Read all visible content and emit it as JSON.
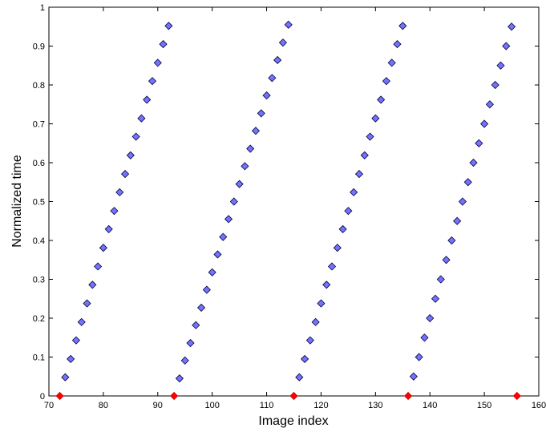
{
  "chart_data": {
    "type": "scatter",
    "title": "",
    "xlabel": "Image index",
    "ylabel": "Normalized time",
    "xlim": [
      70,
      160
    ],
    "ylim": [
      0,
      1
    ],
    "xticks": [
      70,
      80,
      90,
      100,
      110,
      120,
      130,
      140,
      150,
      160
    ],
    "yticks": [
      0,
      0.1,
      0.2,
      0.3,
      0.4,
      0.5,
      0.6,
      0.7,
      0.8,
      0.9,
      1
    ],
    "grid": false,
    "series": [
      {
        "marker": "diamond",
        "color": "#0000ff",
        "points": [
          [
            73,
            0.048
          ],
          [
            74,
            0.095
          ],
          [
            75,
            0.143
          ],
          [
            76,
            0.19
          ],
          [
            77,
            0.238
          ],
          [
            78,
            0.286
          ],
          [
            79,
            0.333
          ],
          [
            80,
            0.381
          ],
          [
            81,
            0.429
          ],
          [
            82,
            0.476
          ],
          [
            83,
            0.524
          ],
          [
            84,
            0.571
          ],
          [
            85,
            0.619
          ],
          [
            86,
            0.667
          ],
          [
            87,
            0.714
          ],
          [
            88,
            0.762
          ],
          [
            89,
            0.81
          ],
          [
            90,
            0.857
          ],
          [
            91,
            0.905
          ],
          [
            92,
            0.952
          ],
          [
            94,
            0.045
          ],
          [
            95,
            0.091
          ],
          [
            96,
            0.136
          ],
          [
            97,
            0.182
          ],
          [
            98,
            0.227
          ],
          [
            99,
            0.273
          ],
          [
            100,
            0.318
          ],
          [
            101,
            0.364
          ],
          [
            102,
            0.409
          ],
          [
            103,
            0.455
          ],
          [
            104,
            0.5
          ],
          [
            105,
            0.545
          ],
          [
            106,
            0.591
          ],
          [
            107,
            0.636
          ],
          [
            108,
            0.682
          ],
          [
            109,
            0.727
          ],
          [
            110,
            0.773
          ],
          [
            111,
            0.818
          ],
          [
            112,
            0.864
          ],
          [
            113,
            0.909
          ],
          [
            114,
            0.955
          ],
          [
            116,
            0.048
          ],
          [
            117,
            0.095
          ],
          [
            118,
            0.143
          ],
          [
            119,
            0.19
          ],
          [
            120,
            0.238
          ],
          [
            121,
            0.286
          ],
          [
            122,
            0.333
          ],
          [
            123,
            0.381
          ],
          [
            124,
            0.429
          ],
          [
            125,
            0.476
          ],
          [
            126,
            0.524
          ],
          [
            127,
            0.571
          ],
          [
            128,
            0.619
          ],
          [
            129,
            0.667
          ],
          [
            130,
            0.714
          ],
          [
            131,
            0.762
          ],
          [
            132,
            0.81
          ],
          [
            133,
            0.857
          ],
          [
            134,
            0.905
          ],
          [
            135,
            0.952
          ],
          [
            137,
            0.05
          ],
          [
            138,
            0.1
          ],
          [
            139,
            0.15
          ],
          [
            140,
            0.2
          ],
          [
            141,
            0.25
          ],
          [
            142,
            0.3
          ],
          [
            143,
            0.35
          ],
          [
            144,
            0.4
          ],
          [
            145,
            0.45
          ],
          [
            146,
            0.5
          ],
          [
            147,
            0.55
          ],
          [
            148,
            0.6
          ],
          [
            149,
            0.65
          ],
          [
            150,
            0.7
          ],
          [
            151,
            0.75
          ],
          [
            152,
            0.8
          ],
          [
            153,
            0.85
          ],
          [
            154,
            0.9
          ],
          [
            155,
            0.95
          ]
        ]
      },
      {
        "marker": "diamond",
        "color": "#ff0000",
        "points": [
          [
            72,
            0
          ],
          [
            93,
            0
          ],
          [
            115,
            0
          ],
          [
            136,
            0
          ],
          [
            156,
            0
          ]
        ]
      }
    ]
  }
}
